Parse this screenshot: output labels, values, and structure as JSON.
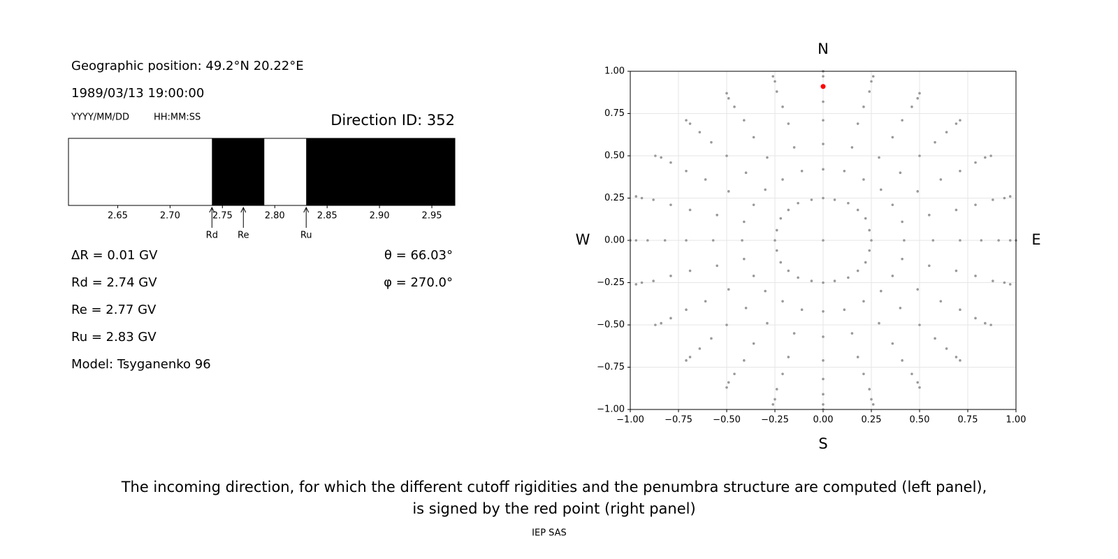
{
  "info": {
    "position": "Geographic position: 49.2°N 20.22°E",
    "datetime": "1989/03/13 19:00:00",
    "date_format": "YYYY/MM/DD",
    "time_format": "HH:MM:SS",
    "direction": "Direction ID: 352"
  },
  "results": [
    "ΔR = 0.01 GV",
    "Rd = 2.74 GV",
    "Re = 2.77 GV",
    "Ru = 2.83 GV",
    "Model: Tsyganenko 96"
  ],
  "angles": [
    "θ = 66.03°",
    "φ = 270.0°"
  ],
  "chart_data": [
    {
      "type": "interval",
      "xlim": [
        2.603,
        2.972
      ],
      "xticks": [
        2.65,
        {
          "value": 2.7,
          "label": "2.70"
        },
        2.75,
        {
          "value": 2.8,
          "label": "2.80"
        },
        2.85,
        {
          "value": 2.9,
          "label": "2.90"
        },
        2.95
      ],
      "color": "#000000",
      "forbidden": [
        [
          2.74,
          2.79
        ],
        [
          2.83,
          2.972
        ]
      ],
      "markers": [
        {
          "label": "Rd",
          "value": 2.74
        },
        {
          "label": "Re",
          "value": 2.77
        },
        {
          "label": "Ru",
          "value": 2.83
        }
      ]
    },
    {
      "type": "scatter",
      "xlim": [
        -1,
        1
      ],
      "ylim": [
        -1,
        1
      ],
      "grid": true,
      "xticks": [
        {
          "value": -1,
          "label": "−1.00"
        },
        {
          "value": -0.75,
          "label": "−0.75"
        },
        {
          "value": -0.5,
          "label": "−0.50"
        },
        {
          "value": -0.25,
          "label": "−0.25"
        },
        {
          "value": 0,
          "label": "0.00"
        },
        0.25,
        {
          "value": 0.5,
          "label": "0.50"
        },
        0.75,
        {
          "value": 1,
          "label": "1.00"
        }
      ],
      "yticks": [
        {
          "value": -1,
          "label": "−1.00"
        },
        {
          "value": -0.75,
          "label": "−0.75"
        },
        {
          "value": -0.5,
          "label": "−0.50"
        },
        {
          "value": -0.25,
          "label": "−0.25"
        },
        {
          "value": 0,
          "label": "0.00"
        },
        0.25,
        {
          "value": 0.5,
          "label": "0.50"
        },
        0.75,
        {
          "value": 1,
          "label": "1.00"
        }
      ],
      "compass": {
        "north": "N",
        "south": "S",
        "west": "W",
        "east": "E"
      },
      "series": [
        {
          "color": "#999999",
          "x": [
            0,
            0.25,
            0.24,
            0.22,
            0.18,
            0.13,
            0.06,
            0,
            -0.06,
            -0.13,
            -0.18,
            -0.22,
            -0.24,
            -0.25,
            -0.24,
            -0.22,
            -0.18,
            -0.13,
            -0.06,
            0,
            0.06,
            0.13,
            0.18,
            0.22,
            0.24,
            0.42,
            0.41,
            0.36,
            0.3,
            0.21,
            0.11,
            0,
            -0.11,
            -0.21,
            -0.3,
            -0.36,
            -0.41,
            -0.42,
            -0.41,
            -0.36,
            -0.3,
            -0.21,
            -0.11,
            0,
            0.11,
            0.21,
            0.3,
            0.36,
            0.41,
            0.57,
            0.55,
            0.49,
            0.4,
            0.29,
            0.15,
            0,
            -0.15,
            -0.29,
            -0.4,
            -0.49,
            -0.55,
            -0.57,
            -0.55,
            -0.49,
            -0.4,
            -0.29,
            -0.15,
            0,
            0.15,
            0.29,
            0.4,
            0.49,
            0.55,
            0.71,
            0.69,
            0.61,
            0.5,
            0.36,
            0.18,
            0,
            -0.18,
            -0.36,
            -0.5,
            -0.61,
            -0.69,
            -0.71,
            -0.69,
            -0.61,
            -0.5,
            -0.36,
            -0.18,
            0,
            0.18,
            0.36,
            0.5,
            0.61,
            0.69,
            0.82,
            0.79,
            0.71,
            0.58,
            0.41,
            0.21,
            0,
            -0.21,
            -0.41,
            -0.58,
            -0.71,
            -0.79,
            -0.82,
            -0.79,
            -0.71,
            -0.58,
            -0.41,
            -0.21,
            0,
            0.21,
            0.41,
            0.58,
            0.71,
            0.79,
            0.91,
            0.88,
            0.79,
            0.64,
            0.46,
            0.24,
            0,
            -0.24,
            -0.46,
            -0.64,
            -0.79,
            -0.88,
            -0.91,
            -0.88,
            -0.79,
            -0.64,
            -0.46,
            -0.24,
            0,
            0.24,
            0.46,
            0.64,
            0.79,
            0.88,
            0.97,
            0.94,
            0.84,
            0.69,
            0.49,
            0.25,
            0,
            -0.25,
            -0.49,
            -0.69,
            -0.84,
            -0.94,
            -0.97,
            -0.94,
            -0.84,
            -0.69,
            -0.49,
            -0.25,
            0,
            0.25,
            0.49,
            0.69,
            0.84,
            0.94,
            1,
            0.97,
            0.87,
            0.71,
            0.5,
            0.26,
            0,
            -0.26,
            -0.5,
            -0.71,
            -0.87,
            -0.97,
            -1,
            -0.97,
            -0.87,
            -0.71,
            -0.5,
            -0.26,
            0,
            0.26,
            0.5,
            0.71,
            0.87,
            0.97
          ],
          "y": [
            0,
            0,
            0.06,
            0.13,
            0.18,
            0.22,
            0.24,
            0.25,
            0.24,
            0.22,
            0.18,
            0.13,
            0.06,
            0,
            -0.06,
            -0.13,
            -0.18,
            -0.22,
            -0.24,
            -0.25,
            -0.24,
            -0.22,
            -0.18,
            -0.13,
            -0.06,
            0,
            0.11,
            0.21,
            0.3,
            0.36,
            0.41,
            0.42,
            0.41,
            0.36,
            0.3,
            0.21,
            0.11,
            0,
            -0.11,
            -0.21,
            -0.3,
            -0.36,
            -0.41,
            -0.42,
            -0.41,
            -0.36,
            -0.3,
            -0.21,
            -0.11,
            0,
            0.15,
            0.29,
            0.4,
            0.49,
            0.55,
            0.57,
            0.55,
            0.49,
            0.4,
            0.29,
            0.15,
            0,
            -0.15,
            -0.29,
            -0.4,
            -0.49,
            -0.55,
            -0.57,
            -0.55,
            -0.49,
            -0.4,
            -0.29,
            -0.15,
            0,
            0.18,
            0.36,
            0.5,
            0.61,
            0.69,
            0.71,
            0.69,
            0.61,
            0.5,
            0.36,
            0.18,
            0,
            -0.18,
            -0.36,
            -0.5,
            -0.61,
            -0.69,
            -0.71,
            -0.69,
            -0.61,
            -0.5,
            -0.36,
            -0.18,
            0,
            0.21,
            0.41,
            0.58,
            0.71,
            0.79,
            0.82,
            0.79,
            0.71,
            0.58,
            0.41,
            0.21,
            0,
            -0.21,
            -0.41,
            -0.58,
            -0.71,
            -0.79,
            -0.82,
            -0.79,
            -0.71,
            -0.58,
            -0.41,
            -0.21,
            0,
            0.24,
            0.46,
            0.64,
            0.79,
            0.88,
            0.91,
            0.88,
            0.79,
            0.64,
            0.46,
            0.24,
            0,
            -0.24,
            -0.46,
            -0.64,
            -0.79,
            -0.88,
            -0.91,
            -0.88,
            -0.79,
            -0.64,
            -0.46,
            -0.24,
            0,
            0.25,
            0.49,
            0.69,
            0.84,
            0.94,
            0.97,
            0.94,
            0.84,
            0.69,
            0.49,
            0.25,
            0,
            -0.25,
            -0.49,
            -0.69,
            -0.84,
            -0.94,
            -0.97,
            -0.94,
            -0.84,
            -0.69,
            -0.49,
            -0.25,
            0,
            0.26,
            0.5,
            0.71,
            0.87,
            0.97,
            1,
            0.97,
            0.87,
            0.71,
            0.5,
            0.26,
            0,
            -0.26,
            -0.5,
            -0.71,
            -0.87,
            -0.97,
            -1,
            -0.97,
            -0.87,
            -0.71,
            -0.5,
            -0.26
          ]
        },
        {
          "color": "#ff0000",
          "x": [
            0
          ],
          "y": [
            0.91
          ]
        }
      ]
    }
  ],
  "caption": [
    "The incoming direction, for which the different cutoff rigidities and the penumbra structure are computed (left panel),",
    "is signed by the red point (right panel)"
  ],
  "footer": "IEP SAS"
}
